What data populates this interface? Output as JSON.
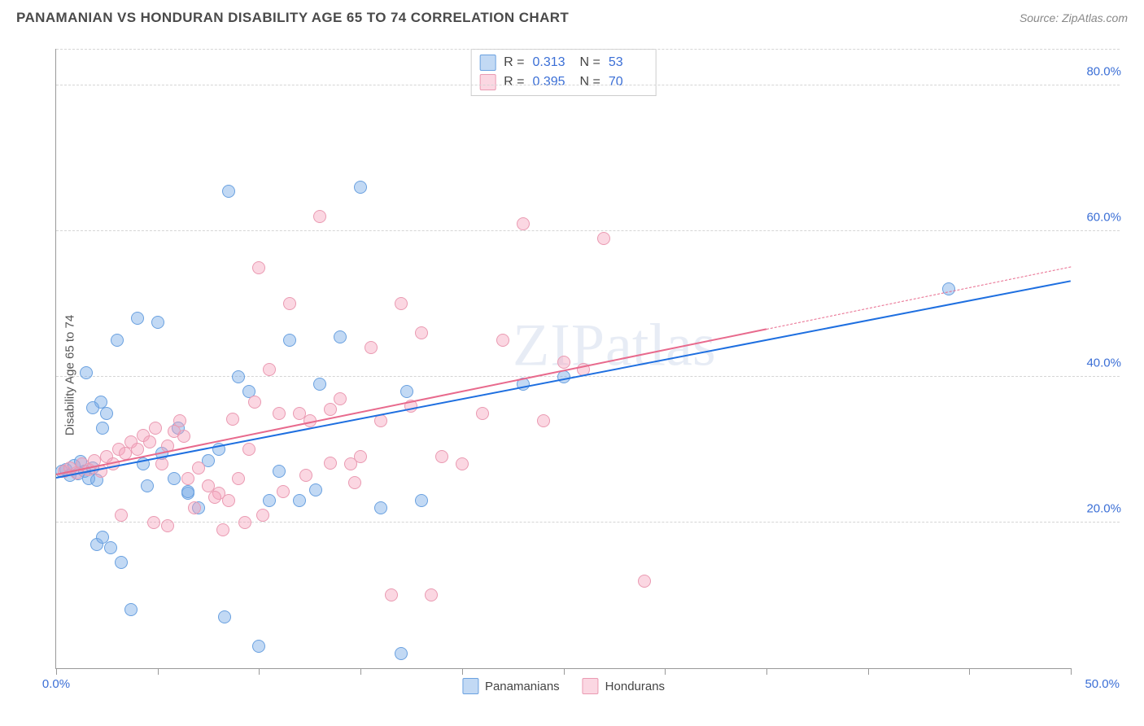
{
  "header": {
    "title": "PANAMANIAN VS HONDURAN DISABILITY AGE 65 TO 74 CORRELATION CHART",
    "source": "Source: ZipAtlas.com"
  },
  "chart": {
    "type": "scatter",
    "ylabel": "Disability Age 65 to 74",
    "xlim": [
      0,
      50
    ],
    "ylim": [
      0,
      85
    ],
    "xtick_step": 5,
    "xtick_labels_shown": {
      "0": "0.0%",
      "50": "50.0%"
    },
    "ygrid": [
      20,
      40,
      60,
      80
    ],
    "ytick_labels": {
      "20": "20.0%",
      "40": "40.0%",
      "60": "60.0%",
      "80": "80.0%"
    },
    "background_color": "#ffffff",
    "grid_color": "#d5d5d5",
    "axis_color": "#999999",
    "tick_label_color": "#3b6fd6",
    "axis_label_color": "#555555",
    "marker_radius": 8,
    "marker_stroke_width": 1.2,
    "series": [
      {
        "name": "Panamanians",
        "legend_label": "Panamanians",
        "fill": "rgba(120,170,230,0.45)",
        "stroke": "#6aa1e0",
        "trend_color": "#1e6fe0",
        "trend_solid_end_x": 50,
        "R": 0.313,
        "N": 53,
        "trend": {
          "x0": 0,
          "y0": 26,
          "x1": 50,
          "y1": 53
        },
        "points": [
          [
            0.3,
            27
          ],
          [
            0.5,
            27.3
          ],
          [
            0.7,
            26.5
          ],
          [
            0.9,
            27.8
          ],
          [
            1.1,
            26.7
          ],
          [
            1.2,
            28.4
          ],
          [
            1.4,
            27
          ],
          [
            1.6,
            26
          ],
          [
            1.8,
            27.5
          ],
          [
            2,
            25.8
          ],
          [
            1.5,
            40.5
          ],
          [
            2.2,
            36.5
          ],
          [
            2.5,
            35
          ],
          [
            1.8,
            35.8
          ],
          [
            2.3,
            33
          ],
          [
            2,
            17
          ],
          [
            2.3,
            18
          ],
          [
            2.7,
            16.5
          ],
          [
            3,
            45
          ],
          [
            4,
            48
          ],
          [
            5,
            47.5
          ],
          [
            4.3,
            28
          ],
          [
            5.2,
            29.5
          ],
          [
            6,
            33
          ],
          [
            6.5,
            24
          ],
          [
            7,
            22
          ],
          [
            7.5,
            28.5
          ],
          [
            8,
            30
          ],
          [
            8.5,
            65.5
          ],
          [
            9,
            40
          ],
          [
            9.5,
            38
          ],
          [
            3.7,
            8
          ],
          [
            8.3,
            7
          ],
          [
            10,
            3
          ],
          [
            10.5,
            23
          ],
          [
            11,
            27
          ],
          [
            12,
            23
          ],
          [
            13,
            39
          ],
          [
            14,
            45.5
          ],
          [
            15,
            66
          ],
          [
            16,
            22
          ],
          [
            17,
            2
          ],
          [
            17.3,
            38
          ],
          [
            18,
            23
          ],
          [
            44,
            52
          ],
          [
            23,
            39
          ],
          [
            25,
            40
          ],
          [
            6.5,
            24.2
          ],
          [
            3.2,
            14.5
          ],
          [
            4.5,
            25
          ],
          [
            5.8,
            26
          ],
          [
            11.5,
            45
          ],
          [
            12.8,
            24.5
          ]
        ]
      },
      {
        "name": "Hondurans",
        "legend_label": "Hondurans",
        "fill": "rgba(245,160,185,0.42)",
        "stroke": "#ea9ab2",
        "trend_color": "#e86a8d",
        "trend_solid_end_x": 35,
        "R": 0.395,
        "N": 70,
        "trend": {
          "x0": 0,
          "y0": 26.5,
          "x1": 50,
          "y1": 55
        },
        "points": [
          [
            0.4,
            27
          ],
          [
            0.7,
            27.5
          ],
          [
            1,
            26.8
          ],
          [
            1.3,
            28
          ],
          [
            1.6,
            27.2
          ],
          [
            1.9,
            28.5
          ],
          [
            2.2,
            27
          ],
          [
            2.5,
            29
          ],
          [
            2.8,
            28
          ],
          [
            3.1,
            30
          ],
          [
            3.4,
            29.5
          ],
          [
            3.7,
            31
          ],
          [
            4,
            30
          ],
          [
            4.3,
            32
          ],
          [
            4.6,
            31
          ],
          [
            4.9,
            33
          ],
          [
            5.2,
            28
          ],
          [
            5.5,
            30.5
          ],
          [
            5.8,
            32.5
          ],
          [
            6.1,
            34
          ],
          [
            6.5,
            26
          ],
          [
            7,
            27.5
          ],
          [
            7.5,
            25
          ],
          [
            8,
            24
          ],
          [
            8.5,
            23
          ],
          [
            9,
            26
          ],
          [
            9.5,
            30
          ],
          [
            10,
            55
          ],
          [
            10.5,
            41
          ],
          [
            11,
            35
          ],
          [
            11.5,
            50
          ],
          [
            12,
            35
          ],
          [
            12.5,
            34
          ],
          [
            13,
            62
          ],
          [
            13.5,
            35.5
          ],
          [
            14,
            37
          ],
          [
            14.5,
            28
          ],
          [
            15,
            29
          ],
          [
            15.5,
            44
          ],
          [
            16,
            34
          ],
          [
            16.5,
            10
          ],
          [
            17,
            50
          ],
          [
            17.5,
            36
          ],
          [
            18,
            46
          ],
          [
            18.5,
            10
          ],
          [
            19,
            29
          ],
          [
            20,
            28
          ],
          [
            21,
            35
          ],
          [
            22,
            45
          ],
          [
            23,
            61
          ],
          [
            24,
            34
          ],
          [
            25,
            42
          ],
          [
            26,
            41
          ],
          [
            27,
            59
          ],
          [
            29,
            12
          ],
          [
            8.2,
            19
          ],
          [
            9.3,
            20
          ],
          [
            10.2,
            21
          ],
          [
            6.8,
            22
          ],
          [
            7.8,
            23.5
          ],
          [
            3.2,
            21
          ],
          [
            4.8,
            20
          ],
          [
            5.5,
            19.5
          ],
          [
            11.2,
            24.2
          ],
          [
            12.3,
            26.5
          ],
          [
            13.5,
            28.2
          ],
          [
            14.7,
            25.5
          ],
          [
            6.3,
            31.8
          ],
          [
            8.7,
            34.2
          ],
          [
            9.8,
            36.5
          ]
        ]
      }
    ],
    "stat_box": {
      "rows": [
        {
          "swatch_fill": "rgba(120,170,230,0.45)",
          "swatch_stroke": "#6aa1e0",
          "r_label": "R =",
          "r_val": "0.313",
          "n_label": "N =",
          "n_val": "53"
        },
        {
          "swatch_fill": "rgba(245,160,185,0.42)",
          "swatch_stroke": "#ea9ab2",
          "r_label": "R =",
          "r_val": "0.395",
          "n_label": "N =",
          "n_val": "70"
        }
      ]
    },
    "watermark": {
      "part1": "ZIP",
      "part2": "atlas"
    }
  }
}
